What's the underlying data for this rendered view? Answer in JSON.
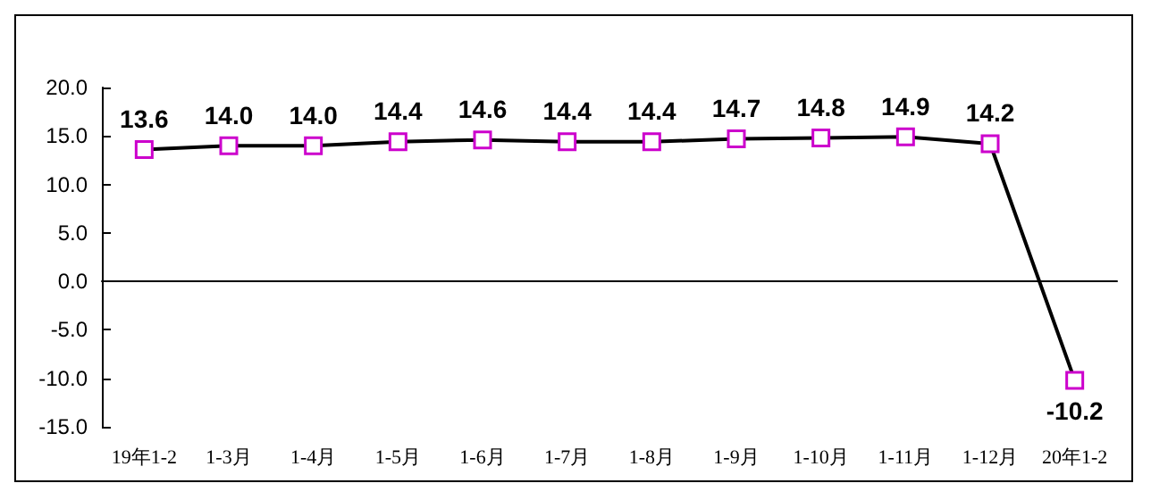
{
  "chart_data": {
    "type": "line",
    "categories": [
      "19年1-2",
      "1-3月",
      "1-4月",
      "1-5月",
      "1-6月",
      "1-7月",
      "1-8月",
      "1-9月",
      "1-10月",
      "1-11月",
      "1-12月",
      "20年1-2"
    ],
    "series": [
      {
        "color": "#000000",
        "values": [
          13.6,
          14.0,
          14.0,
          14.4,
          14.6,
          14.4,
          14.4,
          14.7,
          14.8,
          14.9,
          14.2,
          -10.2
        ],
        "value_labels": [
          "13.6",
          "14.0",
          "14.0",
          "14.4",
          "14.6",
          "14.4",
          "14.4",
          "14.7",
          "14.8",
          "14.9",
          "14.2",
          "-10.2"
        ]
      }
    ],
    "ylim": [
      -15,
      20
    ],
    "yticks": [
      {
        "value": -15,
        "label": "-15.0"
      },
      {
        "value": -10,
        "label": "-10.0"
      },
      {
        "value": -5,
        "label": "-5.0"
      },
      {
        "value": 0,
        "label": "0.0"
      },
      {
        "value": 5,
        "label": "5.0"
      },
      {
        "value": 10,
        "label": "10.0"
      },
      {
        "value": 15,
        "label": "15.0"
      },
      {
        "value": 20,
        "label": "20.0"
      }
    ],
    "marker": "square",
    "line_style": "solid"
  }
}
